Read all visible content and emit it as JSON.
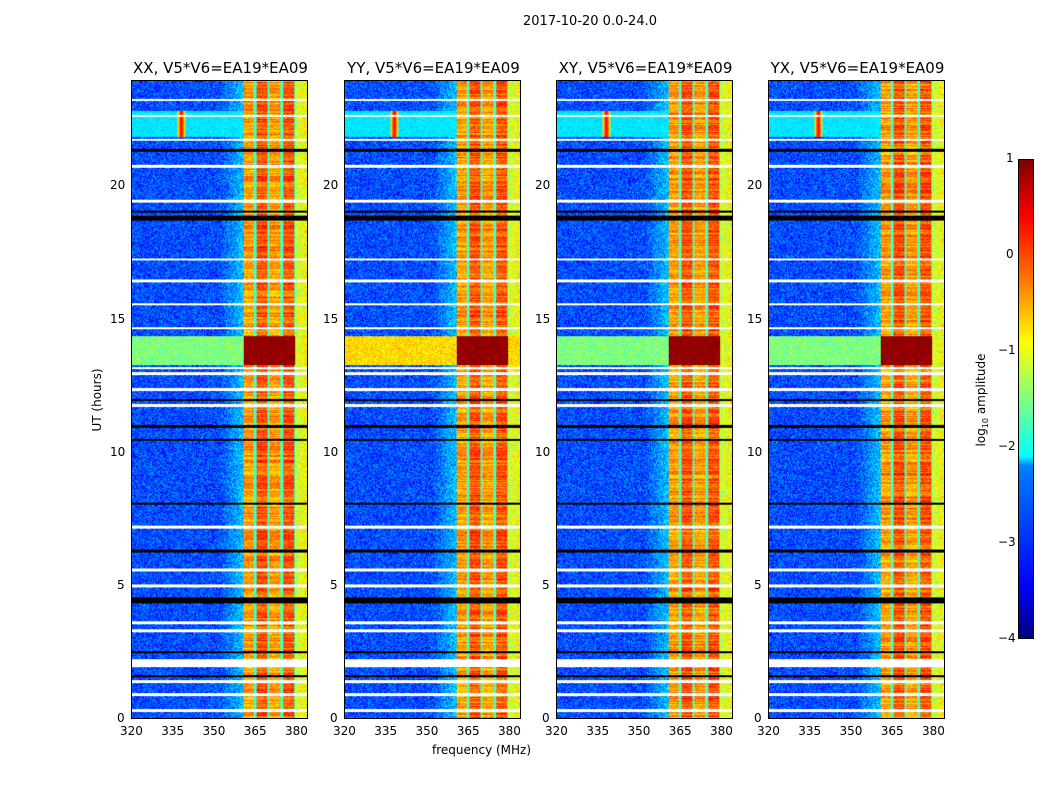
{
  "chart_data": {
    "type": "heatmap",
    "title": "2017-10-20 0.0-24.0",
    "xlabel": "frequency (MHz)",
    "ylabel": "UT (hours)",
    "xlim": [
      320,
      384.4
    ],
    "ylim": [
      0,
      24
    ],
    "xticks": [
      "320",
      "335",
      "350",
      "365",
      "380"
    ],
    "xtick_values": [
      320,
      335,
      350,
      365,
      380
    ],
    "yticks": [
      "0",
      "5",
      "10",
      "15",
      "20"
    ],
    "ytick_values": [
      0,
      5,
      10,
      15,
      20
    ],
    "panels": [
      {
        "title": "XX, V5*V6=EA19*EA09"
      },
      {
        "title": "YY, V5*V6=EA19*EA09"
      },
      {
        "title": "XY, V5*V6=EA19*EA09"
      },
      {
        "title": "YX, V5*V6=EA19*EA09"
      }
    ],
    "colorbar": {
      "label_prefix": "log",
      "label_sub": "10",
      "label_suffix": " amplitude",
      "range": [
        -4,
        1
      ],
      "ticks": [
        "1",
        "0",
        "−1",
        "−2",
        "−3",
        "−4"
      ],
      "tick_values": [
        1,
        0,
        -1,
        -2,
        -3,
        -4
      ]
    },
    "features": {
      "background_level": -3,
      "band_MHz": [
        361,
        380
      ],
      "band_level": -0.7,
      "band_gaps_MHz": [
        365,
        370,
        375,
        380
      ],
      "rfi_hours": [
        13.3,
        14.4
      ],
      "rfi_level": 0.8,
      "source_MHz": 338,
      "source_hours": [
        21.9,
        22.9
      ],
      "flagged_white_hours": [
        0.3,
        0.9,
        1.4,
        2.0,
        2.1,
        2.2,
        3.3,
        3.6,
        5.0,
        5.6,
        7.2,
        11.8,
        12.4,
        13.0,
        13.2,
        14.7,
        15.6,
        16.5,
        17.3,
        19.5,
        20.8,
        21.8,
        22.7,
        23.3
      ],
      "flagged_black_hours": [
        1.6,
        2.5,
        4.4,
        4.5,
        6.3,
        8.1,
        10.5,
        11.0,
        12.0,
        18.8,
        18.9,
        19.1,
        21.4
      ]
    }
  }
}
